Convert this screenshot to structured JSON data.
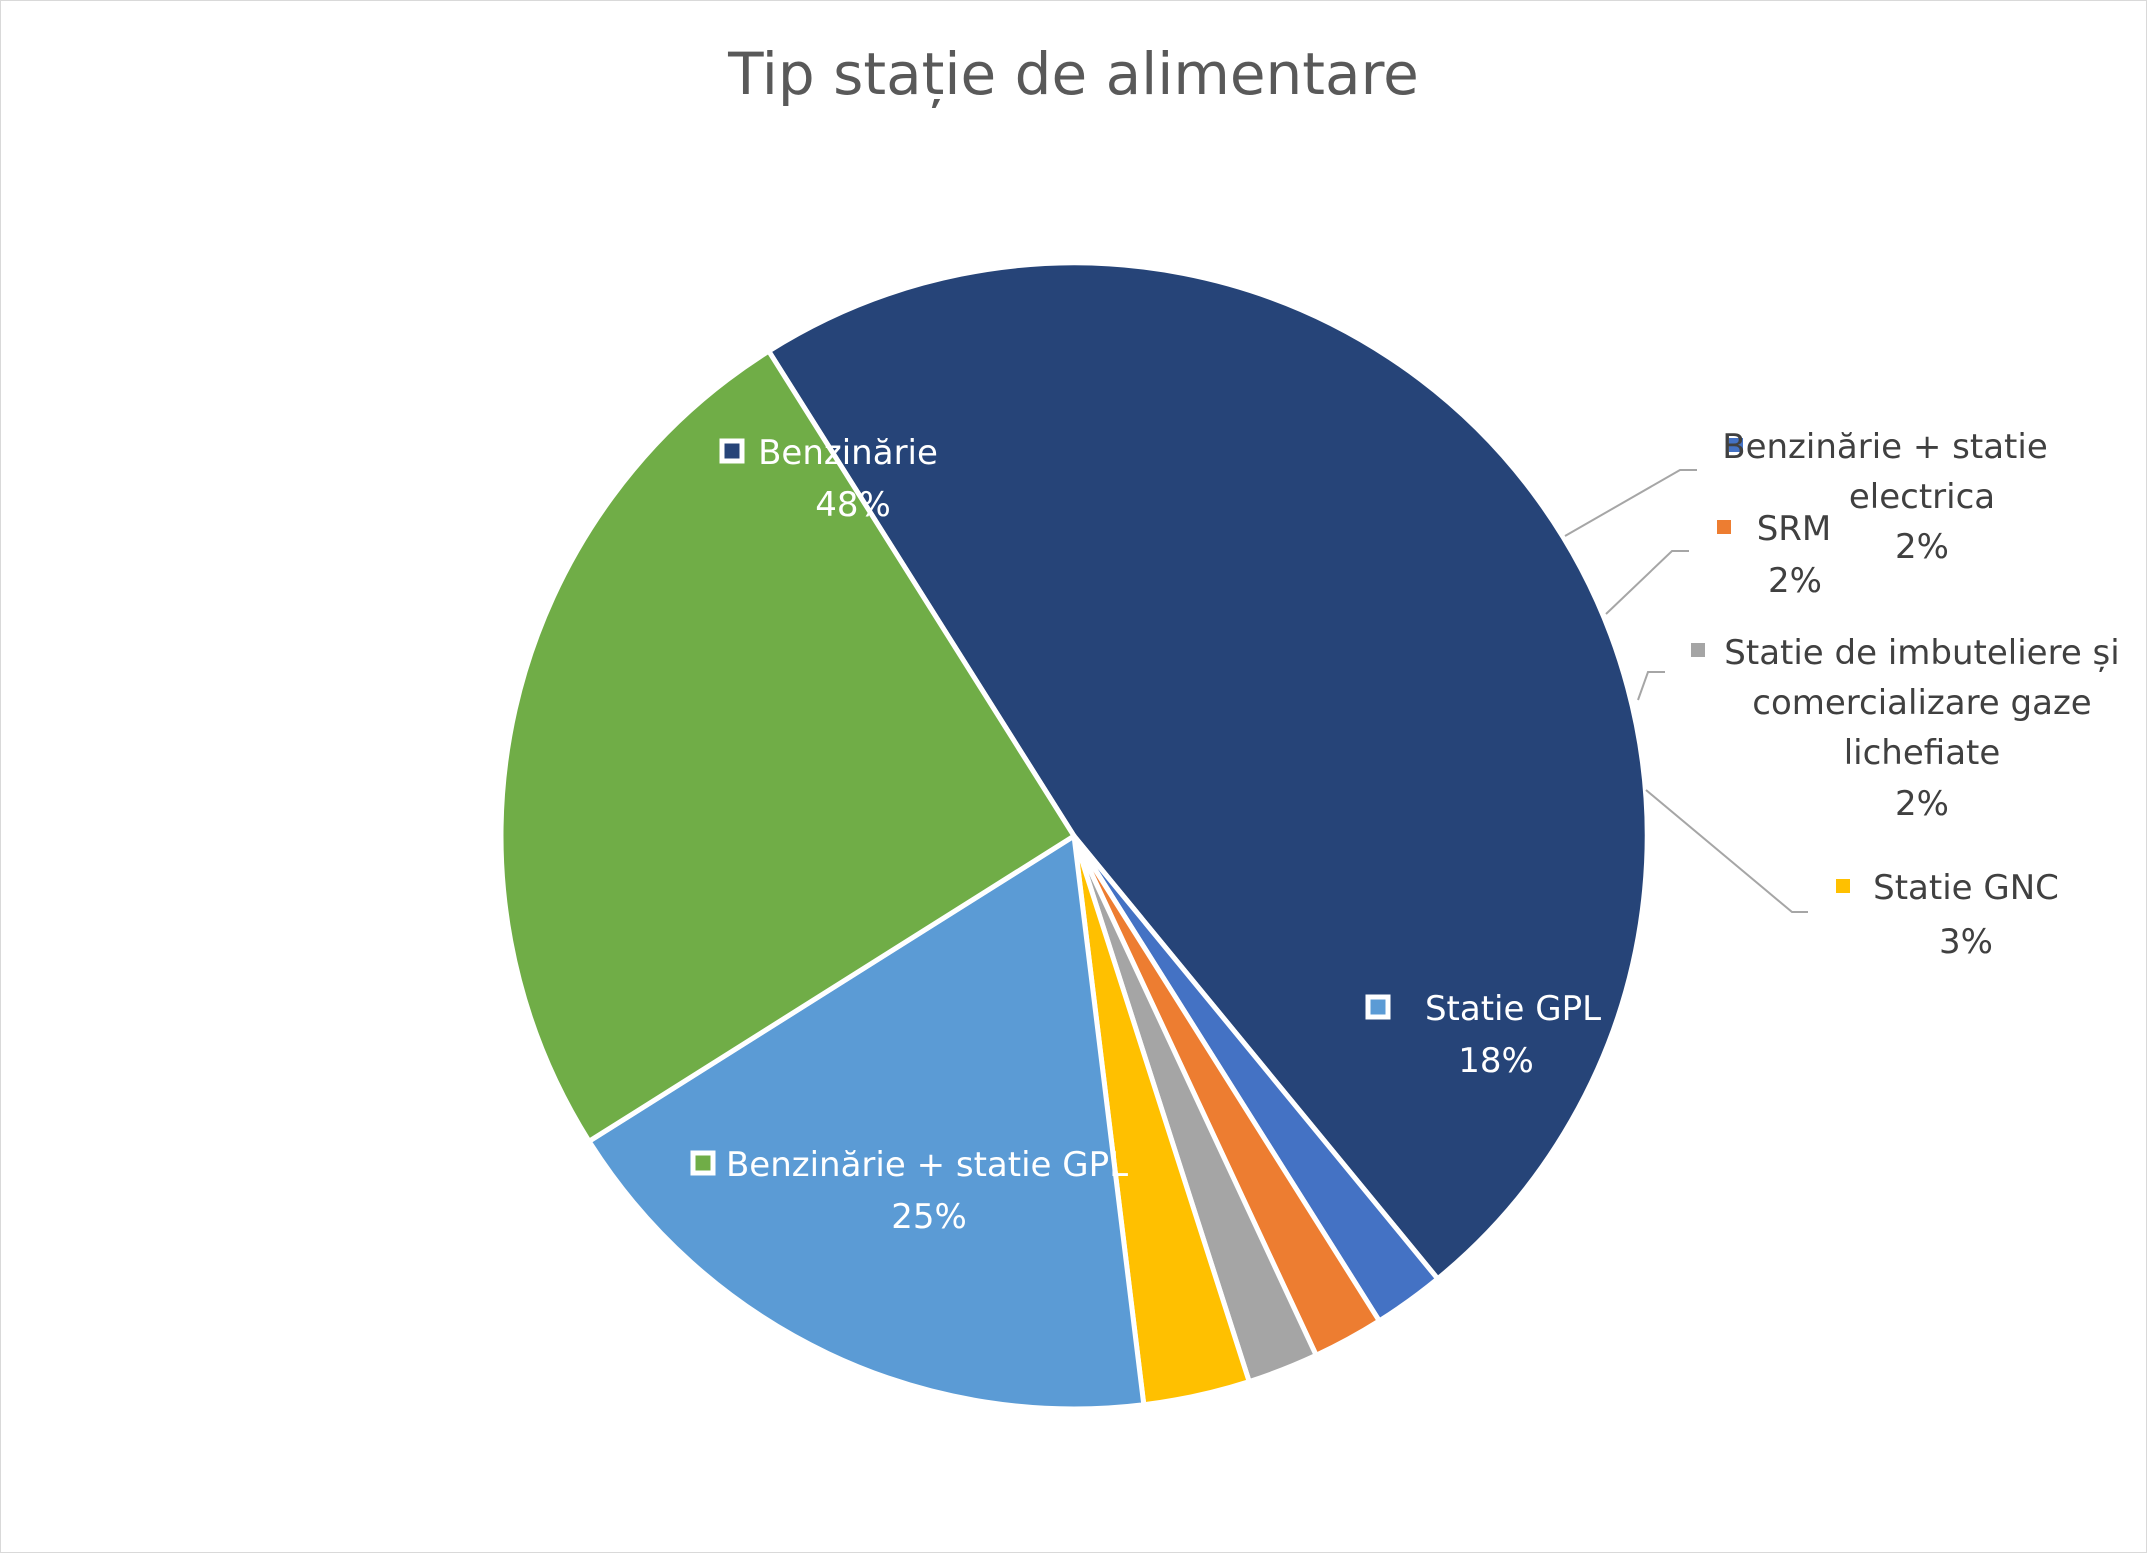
{
  "chart_data": {
    "type": "pie",
    "title": "Tip stație de alimentare",
    "slices": [
      {
        "label": "Benzinărie",
        "value": 48,
        "pct_label": "48%",
        "color": "#264478"
      },
      {
        "label": "Benzinărie + statie electrica",
        "value": 2,
        "pct_label": "2%",
        "color": "#4472C4"
      },
      {
        "label": "SRM",
        "value": 2,
        "pct_label": "2%",
        "color": "#ED7D31"
      },
      {
        "label": "Statie de imbuteliere și comercializare gaze lichefiate",
        "value": 2,
        "pct_label": "2%",
        "color": "#A5A5A5"
      },
      {
        "label": "Statie GNC",
        "value": 3,
        "pct_label": "3%",
        "color": "#FFC000"
      },
      {
        "label": "Statie GPL",
        "value": 18,
        "pct_label": "18%",
        "color": "#5B9BD5"
      },
      {
        "label": "Benzinărie + statie GPL",
        "value": 25,
        "pct_label": "25%",
        "color": "#70AD47"
      }
    ],
    "legend": "none (data labels on slices)"
  }
}
